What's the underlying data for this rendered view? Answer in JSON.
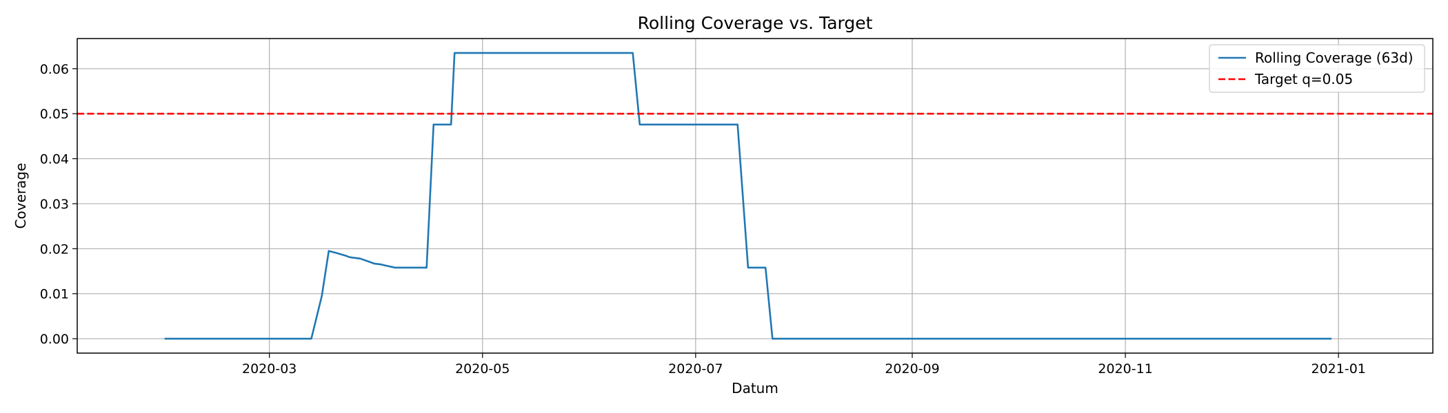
{
  "chart_data": {
    "type": "line",
    "title": "Rolling Coverage vs. Target",
    "xlabel": "Datum",
    "ylabel": "Coverage",
    "xlim": [
      "2020-01-06",
      "2021-01-28"
    ],
    "ylim": [
      -0.0032,
      0.0667
    ],
    "grid": true,
    "legend_position": "top-right",
    "x_ticks": [
      "2020-03-01",
      "2020-05-01",
      "2020-07-01",
      "2020-09-01",
      "2020-11-01",
      "2021-01-01"
    ],
    "x_tick_labels": [
      "2020-03",
      "2020-05",
      "2020-07",
      "2020-09",
      "2020-11",
      "2021-01"
    ],
    "y_ticks": [
      0.0,
      0.01,
      0.02,
      0.03,
      0.04,
      0.05,
      0.06
    ],
    "y_tick_labels": [
      "0.00",
      "0.01",
      "0.02",
      "0.03",
      "0.04",
      "0.05",
      "0.06"
    ],
    "series": [
      {
        "name": "Rolling Coverage (63d)",
        "color": "#1f77b4",
        "style": "solid",
        "points": [
          [
            "2020-01-31",
            0.0
          ],
          [
            "2020-03-13",
            0.0
          ],
          [
            "2020-03-16",
            0.0095
          ],
          [
            "2020-03-18",
            0.0195
          ],
          [
            "2020-03-20",
            0.0191
          ],
          [
            "2020-03-23",
            0.0184
          ],
          [
            "2020-03-24",
            0.0181
          ],
          [
            "2020-03-27",
            0.0178
          ],
          [
            "2020-03-31",
            0.0167
          ],
          [
            "2020-04-02",
            0.0165
          ],
          [
            "2020-04-03",
            0.0163
          ],
          [
            "2020-04-06",
            0.0158
          ],
          [
            "2020-04-14",
            0.0158
          ],
          [
            "2020-04-15",
            0.0158
          ],
          [
            "2020-04-17",
            0.0476
          ],
          [
            "2020-04-21",
            0.0476
          ],
          [
            "2020-04-22",
            0.0476
          ],
          [
            "2020-04-23",
            0.0635
          ],
          [
            "2020-06-12",
            0.0635
          ],
          [
            "2020-06-13",
            0.0635
          ],
          [
            "2020-06-15",
            0.0476
          ],
          [
            "2020-07-13",
            0.0476
          ],
          [
            "2020-07-16",
            0.0158
          ],
          [
            "2020-07-20",
            0.0158
          ],
          [
            "2020-07-21",
            0.0158
          ],
          [
            "2020-07-23",
            0.0
          ],
          [
            "2020-12-30",
            0.0
          ]
        ]
      },
      {
        "name": "Target q=0.05",
        "color": "#ff0000",
        "style": "dashed",
        "points": [
          [
            "2020-01-06",
            0.05
          ],
          [
            "2021-01-28",
            0.05
          ]
        ]
      }
    ]
  }
}
